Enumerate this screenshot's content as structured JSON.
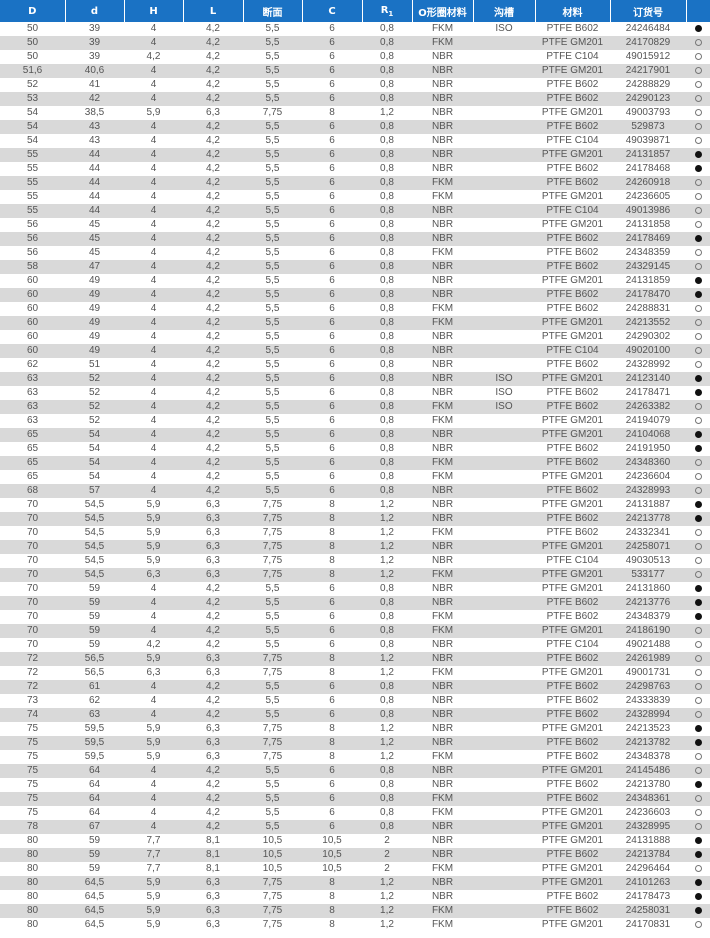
{
  "header": {
    "columns": [
      "D",
      "d",
      "H",
      "L",
      "断面",
      "C",
      "R",
      "O形圈材料",
      "沟槽",
      "材料",
      "订货号",
      ""
    ],
    "r_subscript": "1"
  },
  "colors": {
    "header_bg": "#1a72c4",
    "row_alt": "#d9d9d9"
  },
  "rows": [
    [
      "50",
      "39",
      "4",
      "4,2",
      "5,5",
      "6",
      "0,8",
      "FKM",
      "ISO",
      "PTFE B602",
      "24246484",
      true
    ],
    [
      "50",
      "39",
      "4",
      "4,2",
      "5,5",
      "6",
      "0,8",
      "FKM",
      "",
      "PTFE GM201",
      "24170829",
      false
    ],
    [
      "50",
      "39",
      "4,2",
      "4,2",
      "5,5",
      "6",
      "0,8",
      "NBR",
      "",
      "PTFE C104",
      "49015912",
      false
    ],
    [
      "51,6",
      "40,6",
      "4",
      "4,2",
      "5,5",
      "6",
      "0,8",
      "NBR",
      "",
      "PTFE GM201",
      "24217901",
      false
    ],
    [
      "52",
      "41",
      "4",
      "4,2",
      "5,5",
      "6",
      "0,8",
      "NBR",
      "",
      "PTFE B602",
      "24288829",
      false
    ],
    [
      "53",
      "42",
      "4",
      "4,2",
      "5,5",
      "6",
      "0,8",
      "NBR",
      "",
      "PTFE B602",
      "24290123",
      false
    ],
    [
      "54",
      "38,5",
      "5,9",
      "6,3",
      "7,75",
      "8",
      "1,2",
      "NBR",
      "",
      "PTFE GM201",
      "49003793",
      false
    ],
    [
      "54",
      "43",
      "4",
      "4,2",
      "5,5",
      "6",
      "0,8",
      "NBR",
      "",
      "PTFE B602",
      "529873",
      false
    ],
    [
      "54",
      "43",
      "4",
      "4,2",
      "5,5",
      "6",
      "0,8",
      "NBR",
      "",
      "PTFE C104",
      "49039871",
      false
    ],
    [
      "55",
      "44",
      "4",
      "4,2",
      "5,5",
      "6",
      "0,8",
      "NBR",
      "",
      "PTFE GM201",
      "24131857",
      true
    ],
    [
      "55",
      "44",
      "4",
      "4,2",
      "5,5",
      "6",
      "0,8",
      "NBR",
      "",
      "PTFE B602",
      "24178468",
      true
    ],
    [
      "55",
      "44",
      "4",
      "4,2",
      "5,5",
      "6",
      "0,8",
      "FKM",
      "",
      "PTFE B602",
      "24260918",
      false
    ],
    [
      "55",
      "44",
      "4",
      "4,2",
      "5,5",
      "6",
      "0,8",
      "FKM",
      "",
      "PTFE GM201",
      "24236605",
      false
    ],
    [
      "55",
      "44",
      "4",
      "4,2",
      "5,5",
      "6",
      "0,8",
      "NBR",
      "",
      "PTFE C104",
      "49013986",
      false
    ],
    [
      "56",
      "45",
      "4",
      "4,2",
      "5,5",
      "6",
      "0,8",
      "NBR",
      "",
      "PTFE GM201",
      "24131858",
      false
    ],
    [
      "56",
      "45",
      "4",
      "4,2",
      "5,5",
      "6",
      "0,8",
      "NBR",
      "",
      "PTFE B602",
      "24178469",
      true
    ],
    [
      "56",
      "45",
      "4",
      "4,2",
      "5,5",
      "6",
      "0,8",
      "FKM",
      "",
      "PTFE B602",
      "24348359",
      false
    ],
    [
      "58",
      "47",
      "4",
      "4,2",
      "5,5",
      "6",
      "0,8",
      "NBR",
      "",
      "PTFE B602",
      "24329145",
      false
    ],
    [
      "60",
      "49",
      "4",
      "4,2",
      "5,5",
      "6",
      "0,8",
      "NBR",
      "",
      "PTFE GM201",
      "24131859",
      true
    ],
    [
      "60",
      "49",
      "4",
      "4,2",
      "5,5",
      "6",
      "0,8",
      "NBR",
      "",
      "PTFE B602",
      "24178470",
      true
    ],
    [
      "60",
      "49",
      "4",
      "4,2",
      "5,5",
      "6",
      "0,8",
      "FKM",
      "",
      "PTFE B602",
      "24288831",
      false
    ],
    [
      "60",
      "49",
      "4",
      "4,2",
      "5,5",
      "6",
      "0,8",
      "FKM",
      "",
      "PTFE GM201",
      "24213552",
      false
    ],
    [
      "60",
      "49",
      "4",
      "4,2",
      "5,5",
      "6",
      "0,8",
      "NBR",
      "",
      "PTFE GM201",
      "24290302",
      false
    ],
    [
      "60",
      "49",
      "4",
      "4,2",
      "5,5",
      "6",
      "0,8",
      "NBR",
      "",
      "PTFE C104",
      "49020100",
      false
    ],
    [
      "62",
      "51",
      "4",
      "4,2",
      "5,5",
      "6",
      "0,8",
      "NBR",
      "",
      "PTFE B602",
      "24328992",
      false
    ],
    [
      "63",
      "52",
      "4",
      "4,2",
      "5,5",
      "6",
      "0,8",
      "NBR",
      "ISO",
      "PTFE GM201",
      "24123140",
      true
    ],
    [
      "63",
      "52",
      "4",
      "4,2",
      "5,5",
      "6",
      "0,8",
      "NBR",
      "ISO",
      "PTFE B602",
      "24178471",
      true
    ],
    [
      "63",
      "52",
      "4",
      "4,2",
      "5,5",
      "6",
      "0,8",
      "FKM",
      "ISO",
      "PTFE B602",
      "24263382",
      false
    ],
    [
      "63",
      "52",
      "4",
      "4,2",
      "5,5",
      "6",
      "0,8",
      "FKM",
      "",
      "PTFE GM201",
      "24194079",
      false
    ],
    [
      "65",
      "54",
      "4",
      "4,2",
      "5,5",
      "6",
      "0,8",
      "NBR",
      "",
      "PTFE GM201",
      "24104068",
      true
    ],
    [
      "65",
      "54",
      "4",
      "4,2",
      "5,5",
      "6",
      "0,8",
      "NBR",
      "",
      "PTFE B602",
      "24191950",
      true
    ],
    [
      "65",
      "54",
      "4",
      "4,2",
      "5,5",
      "6",
      "0,8",
      "FKM",
      "",
      "PTFE B602",
      "24348360",
      false
    ],
    [
      "65",
      "54",
      "4",
      "4,2",
      "5,5",
      "6",
      "0,8",
      "FKM",
      "",
      "PTFE GM201",
      "24236604",
      false
    ],
    [
      "68",
      "57",
      "4",
      "4,2",
      "5,5",
      "6",
      "0,8",
      "NBR",
      "",
      "PTFE B602",
      "24328993",
      false
    ],
    [
      "70",
      "54,5",
      "5,9",
      "6,3",
      "7,75",
      "8",
      "1,2",
      "NBR",
      "",
      "PTFE GM201",
      "24131887",
      true
    ],
    [
      "70",
      "54,5",
      "5,9",
      "6,3",
      "7,75",
      "8",
      "1,2",
      "NBR",
      "",
      "PTFE B602",
      "24213778",
      true
    ],
    [
      "70",
      "54,5",
      "5,9",
      "6,3",
      "7,75",
      "8",
      "1,2",
      "FKM",
      "",
      "PTFE B602",
      "24332341",
      false
    ],
    [
      "70",
      "54,5",
      "5,9",
      "6,3",
      "7,75",
      "8",
      "1,2",
      "NBR",
      "",
      "PTFE GM201",
      "24258071",
      false
    ],
    [
      "70",
      "54,5",
      "5,9",
      "6,3",
      "7,75",
      "8",
      "1,2",
      "NBR",
      "",
      "PTFE C104",
      "49030513",
      false
    ],
    [
      "70",
      "54,5",
      "6,3",
      "6,3",
      "7,75",
      "8",
      "1,2",
      "FKM",
      "",
      "PTFE GM201",
      "533177",
      false
    ],
    [
      "70",
      "59",
      "4",
      "4,2",
      "5,5",
      "6",
      "0,8",
      "NBR",
      "",
      "PTFE GM201",
      "24131860",
      true
    ],
    [
      "70",
      "59",
      "4",
      "4,2",
      "5,5",
      "6",
      "0,8",
      "NBR",
      "",
      "PTFE B602",
      "24213776",
      true
    ],
    [
      "70",
      "59",
      "4",
      "4,2",
      "5,5",
      "6",
      "0,8",
      "FKM",
      "",
      "PTFE B602",
      "24348379",
      true
    ],
    [
      "70",
      "59",
      "4",
      "4,2",
      "5,5",
      "6",
      "0,8",
      "FKM",
      "",
      "PTFE GM201",
      "24186190",
      false
    ],
    [
      "70",
      "59",
      "4,2",
      "4,2",
      "5,5",
      "6",
      "0,8",
      "NBR",
      "",
      "PTFE C104",
      "49021488",
      false
    ],
    [
      "72",
      "56,5",
      "5,9",
      "6,3",
      "7,75",
      "8",
      "1,2",
      "NBR",
      "",
      "PTFE B602",
      "24261989",
      false
    ],
    [
      "72",
      "56,5",
      "6,3",
      "6,3",
      "7,75",
      "8",
      "1,2",
      "FKM",
      "",
      "PTFE GM201",
      "49001731",
      false
    ],
    [
      "72",
      "61",
      "4",
      "4,2",
      "5,5",
      "6",
      "0,8",
      "NBR",
      "",
      "PTFE B602",
      "24298763",
      false
    ],
    [
      "73",
      "62",
      "4",
      "4,2",
      "5,5",
      "6",
      "0,8",
      "NBR",
      "",
      "PTFE B602",
      "24333839",
      false
    ],
    [
      "74",
      "63",
      "4",
      "4,2",
      "5,5",
      "6",
      "0,8",
      "NBR",
      "",
      "PTFE B602",
      "24328994",
      false
    ],
    [
      "75",
      "59,5",
      "5,9",
      "6,3",
      "7,75",
      "8",
      "1,2",
      "NBR",
      "",
      "PTFE GM201",
      "24213523",
      true
    ],
    [
      "75",
      "59,5",
      "5,9",
      "6,3",
      "7,75",
      "8",
      "1,2",
      "NBR",
      "",
      "PTFE B602",
      "24213782",
      true
    ],
    [
      "75",
      "59,5",
      "5,9",
      "6,3",
      "7,75",
      "8",
      "1,2",
      "FKM",
      "",
      "PTFE B602",
      "24348378",
      false
    ],
    [
      "75",
      "64",
      "4",
      "4,2",
      "5,5",
      "6",
      "0,8",
      "NBR",
      "",
      "PTFE GM201",
      "24145486",
      false
    ],
    [
      "75",
      "64",
      "4",
      "4,2",
      "5,5",
      "6",
      "0,8",
      "NBR",
      "",
      "PTFE B602",
      "24213780",
      true
    ],
    [
      "75",
      "64",
      "4",
      "4,2",
      "5,5",
      "6",
      "0,8",
      "FKM",
      "",
      "PTFE B602",
      "24348361",
      false
    ],
    [
      "75",
      "64",
      "4",
      "4,2",
      "5,5",
      "6",
      "0,8",
      "FKM",
      "",
      "PTFE GM201",
      "24236603",
      false
    ],
    [
      "78",
      "67",
      "4",
      "4,2",
      "5,5",
      "6",
      "0,8",
      "NBR",
      "",
      "PTFE GM201",
      "24328995",
      false
    ],
    [
      "80",
      "59",
      "7,7",
      "8,1",
      "10,5",
      "10,5",
      "2",
      "NBR",
      "",
      "PTFE GM201",
      "24131888",
      true
    ],
    [
      "80",
      "59",
      "7,7",
      "8,1",
      "10,5",
      "10,5",
      "2",
      "NBR",
      "",
      "PTFE B602",
      "24213784",
      true
    ],
    [
      "80",
      "59",
      "7,7",
      "8,1",
      "10,5",
      "10,5",
      "2",
      "FKM",
      "",
      "PTFE GM201",
      "24296464",
      false
    ],
    [
      "80",
      "64,5",
      "5,9",
      "6,3",
      "7,75",
      "8",
      "1,2",
      "NBR",
      "",
      "PTFE GM201",
      "24101263",
      true
    ],
    [
      "80",
      "64,5",
      "5,9",
      "6,3",
      "7,75",
      "8",
      "1,2",
      "NBR",
      "",
      "PTFE B602",
      "24178473",
      true
    ],
    [
      "80",
      "64,5",
      "5,9",
      "6,3",
      "7,75",
      "8",
      "1,2",
      "FKM",
      "",
      "PTFE B602",
      "24258031",
      true
    ],
    [
      "80",
      "64,5",
      "5,9",
      "6,3",
      "7,75",
      "8",
      "1,2",
      "FKM",
      "",
      "PTFE GM201",
      "24170831",
      false
    ]
  ]
}
